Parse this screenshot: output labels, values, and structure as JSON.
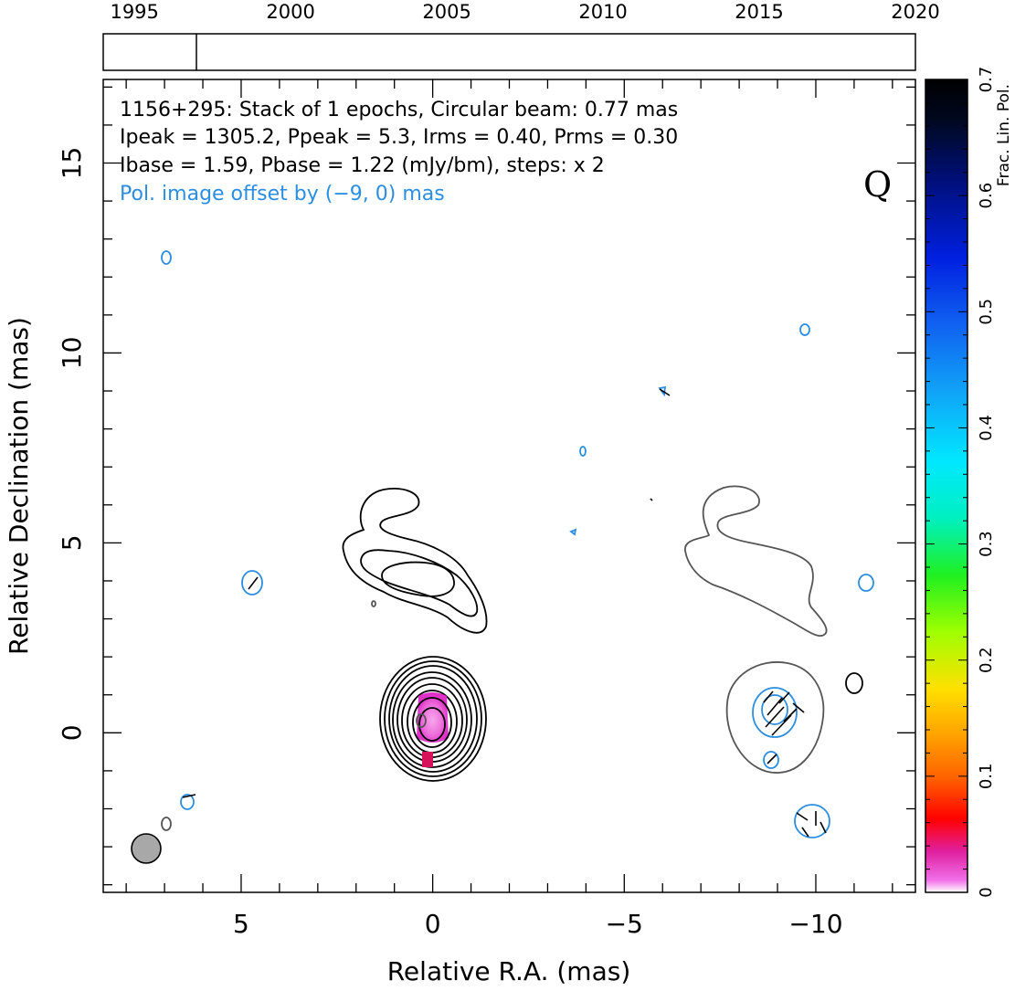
{
  "chart_data": {
    "type": "contour",
    "xlabel": "Relative R.A. (mas)",
    "ylabel": "Relative Declination (mas)",
    "xlim": [
      8.6,
      -12.6
    ],
    "ylim": [
      -4.2,
      17.2
    ],
    "x_ticks": [
      "5",
      "0",
      "−5",
      "−10"
    ],
    "y_ticks": [
      "0",
      "5",
      "10",
      "15"
    ],
    "annotations": {
      "line1": "1156+295: Stack of 1 epochs, Circular beam: 0.77 mas",
      "line2": "Ipeak = 1305.2, Ppeak = 5.3, Irms = 0.40, Prms = 0.30",
      "line3": "Ibase = 1.59, Pbase = 1.22 (mJy/bm), steps: x 2",
      "line4": "Pol. image offset by (−9, 0) mas",
      "band": "Q"
    },
    "beam_mas": 0.77,
    "pol_offset_mas": [
      -9,
      0
    ],
    "timeline": {
      "range": [
        1994,
        2020
      ],
      "ticks": [
        "1995",
        "2000",
        "2005",
        "2010",
        "2015",
        "2020"
      ],
      "epochs": [
        1996.95
      ]
    },
    "colorbar": {
      "label": "Frac. Lin. Pol.",
      "range": [
        0,
        0.7
      ],
      "ticks": [
        "0",
        "0.1",
        "0.2",
        "0.3",
        "0.4",
        "0.5",
        "0.6",
        "0.7"
      ]
    },
    "colors": {
      "total_intensity_contour": "#000000",
      "polarization_contour": "#2b8ee0",
      "pol_intensity_base_contour": "#555555",
      "core_frac_pol": "#e040d0"
    }
  }
}
